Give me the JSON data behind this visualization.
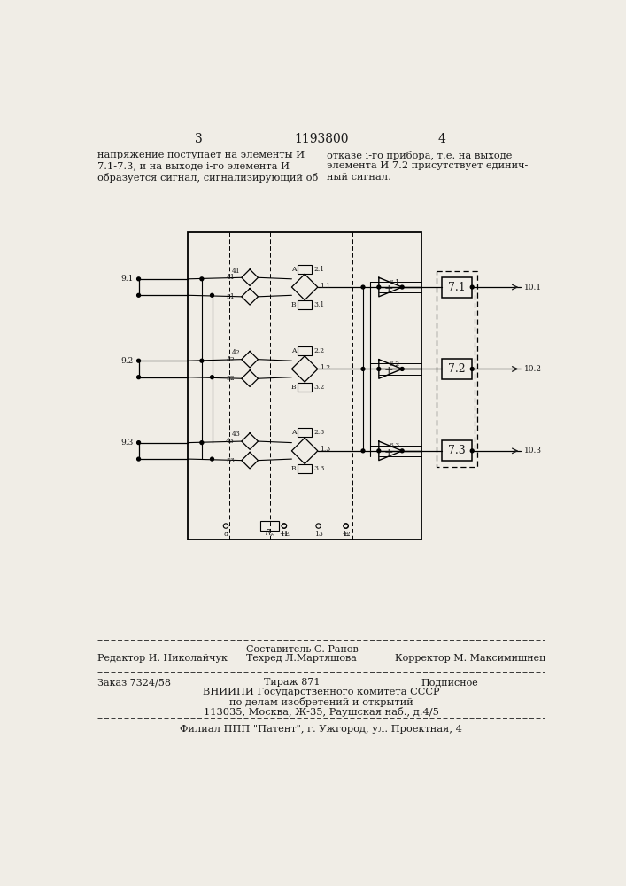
{
  "page_color": "#f0ede6",
  "text_color": "#1a1a1a",
  "header_num_left": "3",
  "header_patent": "1193800",
  "header_num_right": "4",
  "text_left_lines": [
    "напряжение поступает на элементы И",
    "7.1-7.3, и на выходе i-го элемента И",
    "образуется сигнал, сигнализирующий об"
  ],
  "text_right_lines": [
    "отказе i-го прибора, т.е. на выходе",
    "элемента И 7.2 присутствует единич-",
    "ный сигнал."
  ],
  "footer_compose": "Составитель С. Ранов",
  "footer_editor": "Редактор И. Николайчук",
  "footer_techred": "Техред Л.Мартяшова",
  "footer_corrector": "Корректор М. Максимишнец",
  "footer_order": "Заказ 7324/58",
  "footer_tirazh": "Тираж 871",
  "footer_podp": "Подписное",
  "footer_org1": "ВНИИПИ Государственного комитета СССР",
  "footer_org2": "по делам изобретений и открытий",
  "footer_org3": "113035, Москва, Ж-35, Раушская наб., д.4/5",
  "footer_affiliate": "Филиал ППП \"Патент\", г. Ужгород, ул. Проектная, 4"
}
